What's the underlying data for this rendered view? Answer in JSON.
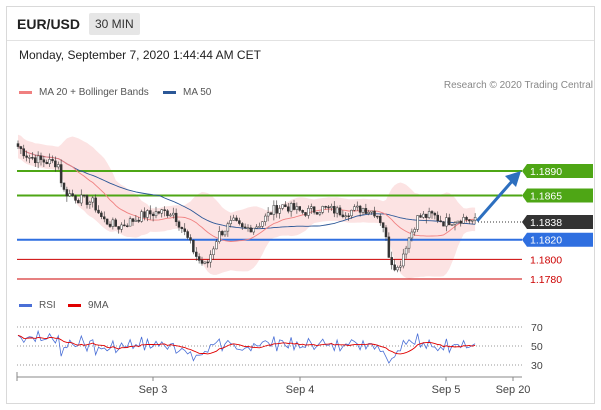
{
  "header": {
    "pair": "EUR/USD",
    "timeframe": "30 MIN"
  },
  "datetime": "Monday, September 7, 2020 1:44:44 AM CET",
  "legend_main": [
    {
      "label": "MA 20 + Bollinger Bands",
      "color": "#f08080"
    },
    {
      "label": "MA 50",
      "color": "#2b5797"
    }
  ],
  "research": "Research © 2020 Trading Central",
  "legend_rsi": [
    {
      "label": "RSI",
      "color": "#4a6fd6"
    },
    {
      "label": "9MA",
      "color": "#e00000"
    }
  ],
  "chart_data": [
    {
      "type": "line",
      "chart": "price",
      "price_range": [
        1.1755,
        1.1935
      ],
      "x_ticks": [
        "Sep 3",
        "Sep 4",
        "Sep 5",
        "Sep 20"
      ],
      "last_price": "1.1838",
      "levels": [
        {
          "price": 1.189,
          "label": "1.1890",
          "kind": "resistance",
          "color": "#4ea615"
        },
        {
          "price": 1.1865,
          "label": "1.1865",
          "kind": "resistance",
          "color": "#4ea615"
        },
        {
          "price": 1.182,
          "label": "1.1820",
          "kind": "pivot",
          "color": "#2f6fe0"
        },
        {
          "price": 1.18,
          "label": "1.1800",
          "kind": "support",
          "color": "#cc0000"
        },
        {
          "price": 1.178,
          "label": "1.1780",
          "kind": "support",
          "color": "#cc0000"
        }
      ],
      "forecast_target": 1.189
    },
    {
      "type": "line",
      "chart": "rsi",
      "range": [
        20,
        80
      ],
      "levels": [
        {
          "value": 70,
          "label": "70"
        },
        {
          "value": 50,
          "label": "50"
        },
        {
          "value": 30,
          "label": "30"
        }
      ]
    }
  ]
}
